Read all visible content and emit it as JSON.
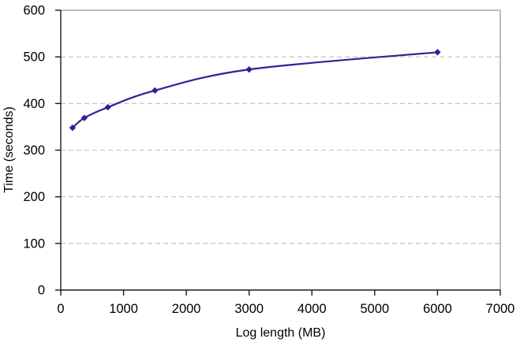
{
  "chart_data": {
    "type": "line",
    "title": "",
    "xlabel": "Log length (MB)",
    "ylabel": "Time (seconds)",
    "x": [
      187.5,
      375,
      750,
      1500,
      3000,
      6000
    ],
    "series": [
      {
        "name": "",
        "values": [
          348,
          369,
          392,
          428,
          473,
          510
        ]
      }
    ],
    "xlim": [
      0,
      7000
    ],
    "ylim": [
      0,
      600
    ],
    "x_ticks": [
      0,
      1000,
      2000,
      3000,
      4000,
      5000,
      6000,
      7000
    ],
    "y_ticks": [
      0,
      100,
      200,
      300,
      400,
      500,
      600
    ],
    "grid": "horizontal-dashed",
    "legend_position": "none",
    "style": {
      "line_color": "#2d2398",
      "marker": "diamond",
      "marker_color": "#2d2398",
      "gridline_color": "#c9c9c9",
      "plot_border_color": "#999999",
      "axis_color": "#1a1a1a",
      "text_color": "#000000",
      "background": "#ffffff",
      "smoothed_line": true
    }
  }
}
